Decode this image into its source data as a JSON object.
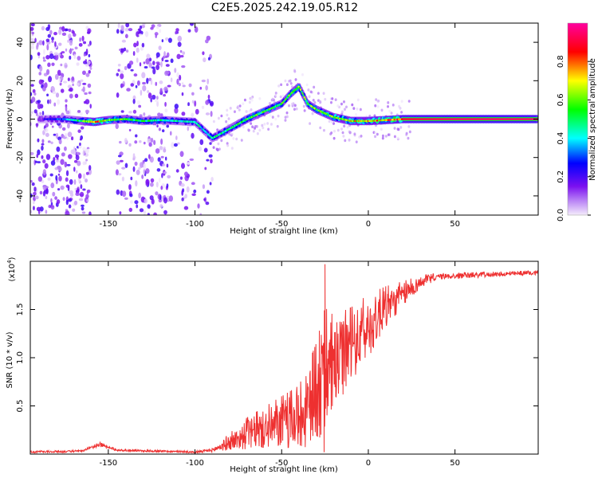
{
  "figure": {
    "title": "C2E5.2025.242.19.05.R12"
  },
  "chart_data": [
    {
      "type": "heatmap",
      "name": "spectrogram",
      "xlabel": "Height of straight line (km)",
      "ylabel": "Frequency (Hz)",
      "xlim": [
        -195,
        98
      ],
      "ylim": [
        -50,
        50
      ],
      "xticks": [
        -150,
        -100,
        -50,
        0,
        50
      ],
      "xtick_labels": [
        "-150",
        "-100",
        "-50",
        "0",
        "50"
      ],
      "yticks": [
        -40,
        -20,
        0,
        20,
        40
      ],
      "ytick_labels": [
        "-40",
        "-20",
        "0",
        "20",
        "40"
      ],
      "colorbar": {
        "label": "Normalized spectral amplitude",
        "range": [
          0,
          1
        ],
        "ticks": [
          0,
          0.2,
          0.4,
          0.6,
          0.8
        ],
        "tick_labels": [
          "0.0",
          "0.2",
          "0.4",
          "0.6",
          "0.8"
        ],
        "colormap": [
          "#f4ecfb",
          "#7b10f0",
          "#0000ff",
          "#00ffff",
          "#00ff00",
          "#ffff00",
          "#ff0000",
          "#ff00a0"
        ]
      },
      "ridge": [
        {
          "x": -185,
          "y": 0.0,
          "amp": 0.25
        },
        {
          "x": -175,
          "y": 0.0,
          "amp": 0.35
        },
        {
          "x": -165,
          "y": -1.0,
          "amp": 0.55
        },
        {
          "x": -158,
          "y": -1.5,
          "amp": 0.85
        },
        {
          "x": -150,
          "y": -0.5,
          "amp": 0.6
        },
        {
          "x": -140,
          "y": 0.0,
          "amp": 0.55
        },
        {
          "x": -130,
          "y": -1.0,
          "amp": 0.5
        },
        {
          "x": -120,
          "y": -0.5,
          "amp": 0.5
        },
        {
          "x": -110,
          "y": -1.0,
          "amp": 0.45
        },
        {
          "x": -100,
          "y": -1.5,
          "amp": 0.45
        },
        {
          "x": -90,
          "y": -10.0,
          "amp": 0.45
        },
        {
          "x": -80,
          "y": -5.0,
          "amp": 0.5
        },
        {
          "x": -70,
          "y": 0.0,
          "amp": 0.55
        },
        {
          "x": -60,
          "y": 4.0,
          "amp": 0.55
        },
        {
          "x": -50,
          "y": 8.0,
          "amp": 0.55
        },
        {
          "x": -45,
          "y": 13.0,
          "amp": 0.6
        },
        {
          "x": -40,
          "y": 17.0,
          "amp": 0.6
        },
        {
          "x": -35,
          "y": 8.0,
          "amp": 0.6
        },
        {
          "x": -30,
          "y": 5.0,
          "amp": 0.6
        },
        {
          "x": -20,
          "y": 1.0,
          "amp": 0.65
        },
        {
          "x": -10,
          "y": -1.0,
          "amp": 0.7
        },
        {
          "x": 0,
          "y": -1.0,
          "amp": 0.75
        },
        {
          "x": 10,
          "y": -0.5,
          "amp": 0.8
        },
        {
          "x": 20,
          "y": 0.0,
          "amp": 0.9
        },
        {
          "x": 50,
          "y": 0.0,
          "amp": 0.95
        },
        {
          "x": 97,
          "y": 0.0,
          "amp": 0.95
        }
      ],
      "noise_bands": [
        {
          "x_range": [
            -195,
            -160
          ],
          "density": 0.75
        },
        {
          "x_range": [
            -145,
            -115
          ],
          "density": 0.6
        },
        {
          "x_range": [
            -115,
            -90
          ],
          "density": 0.3
        }
      ]
    },
    {
      "type": "line",
      "name": "snr",
      "xlabel": "Height of straight line (km)",
      "ylabel": "SNR (10 * v/v)",
      "y_multiplier_label": "(x10",
      "y_multiplier_exp": "4",
      "xlim": [
        -195,
        98
      ],
      "ylim": [
        0,
        2.0
      ],
      "xticks": [
        -150,
        -100,
        -50,
        0,
        50
      ],
      "xtick_labels": [
        "-150",
        "-100",
        "-50",
        "0",
        "50"
      ],
      "yticks": [
        0.5,
        1.0,
        1.5
      ],
      "ytick_labels": [
        "0.5",
        "1.0",
        "1.5"
      ],
      "color": "#ee3030",
      "envelope": [
        {
          "x": -195,
          "mean": 0.02,
          "noise": 0.01
        },
        {
          "x": -165,
          "mean": 0.03,
          "noise": 0.01
        },
        {
          "x": -155,
          "mean": 0.1,
          "noise": 0.02
        },
        {
          "x": -145,
          "mean": 0.04,
          "noise": 0.01
        },
        {
          "x": -100,
          "mean": 0.02,
          "noise": 0.01
        },
        {
          "x": -90,
          "mean": 0.04,
          "noise": 0.02
        },
        {
          "x": -80,
          "mean": 0.12,
          "noise": 0.08
        },
        {
          "x": -70,
          "mean": 0.2,
          "noise": 0.15
        },
        {
          "x": -60,
          "mean": 0.25,
          "noise": 0.2
        },
        {
          "x": -50,
          "mean": 0.3,
          "noise": 0.25
        },
        {
          "x": -40,
          "mean": 0.35,
          "noise": 0.3
        },
        {
          "x": -30,
          "mean": 0.55,
          "noise": 0.5
        },
        {
          "x": -25,
          "mean": 0.8,
          "noise": 0.6
        },
        {
          "x": -20,
          "mean": 0.9,
          "noise": 0.45
        },
        {
          "x": -10,
          "mean": 1.1,
          "noise": 0.35
        },
        {
          "x": 0,
          "mean": 1.3,
          "noise": 0.3
        },
        {
          "x": 10,
          "mean": 1.5,
          "noise": 0.2
        },
        {
          "x": 20,
          "mean": 1.65,
          "noise": 0.12
        },
        {
          "x": 30,
          "mean": 1.78,
          "noise": 0.06
        },
        {
          "x": 40,
          "mean": 1.84,
          "noise": 0.03
        },
        {
          "x": 97,
          "mean": 1.88,
          "noise": 0.02
        }
      ],
      "peaks": [
        {
          "x": -25,
          "y": 1.97
        },
        {
          "x": -25.5,
          "y": 0.02
        }
      ]
    }
  ]
}
